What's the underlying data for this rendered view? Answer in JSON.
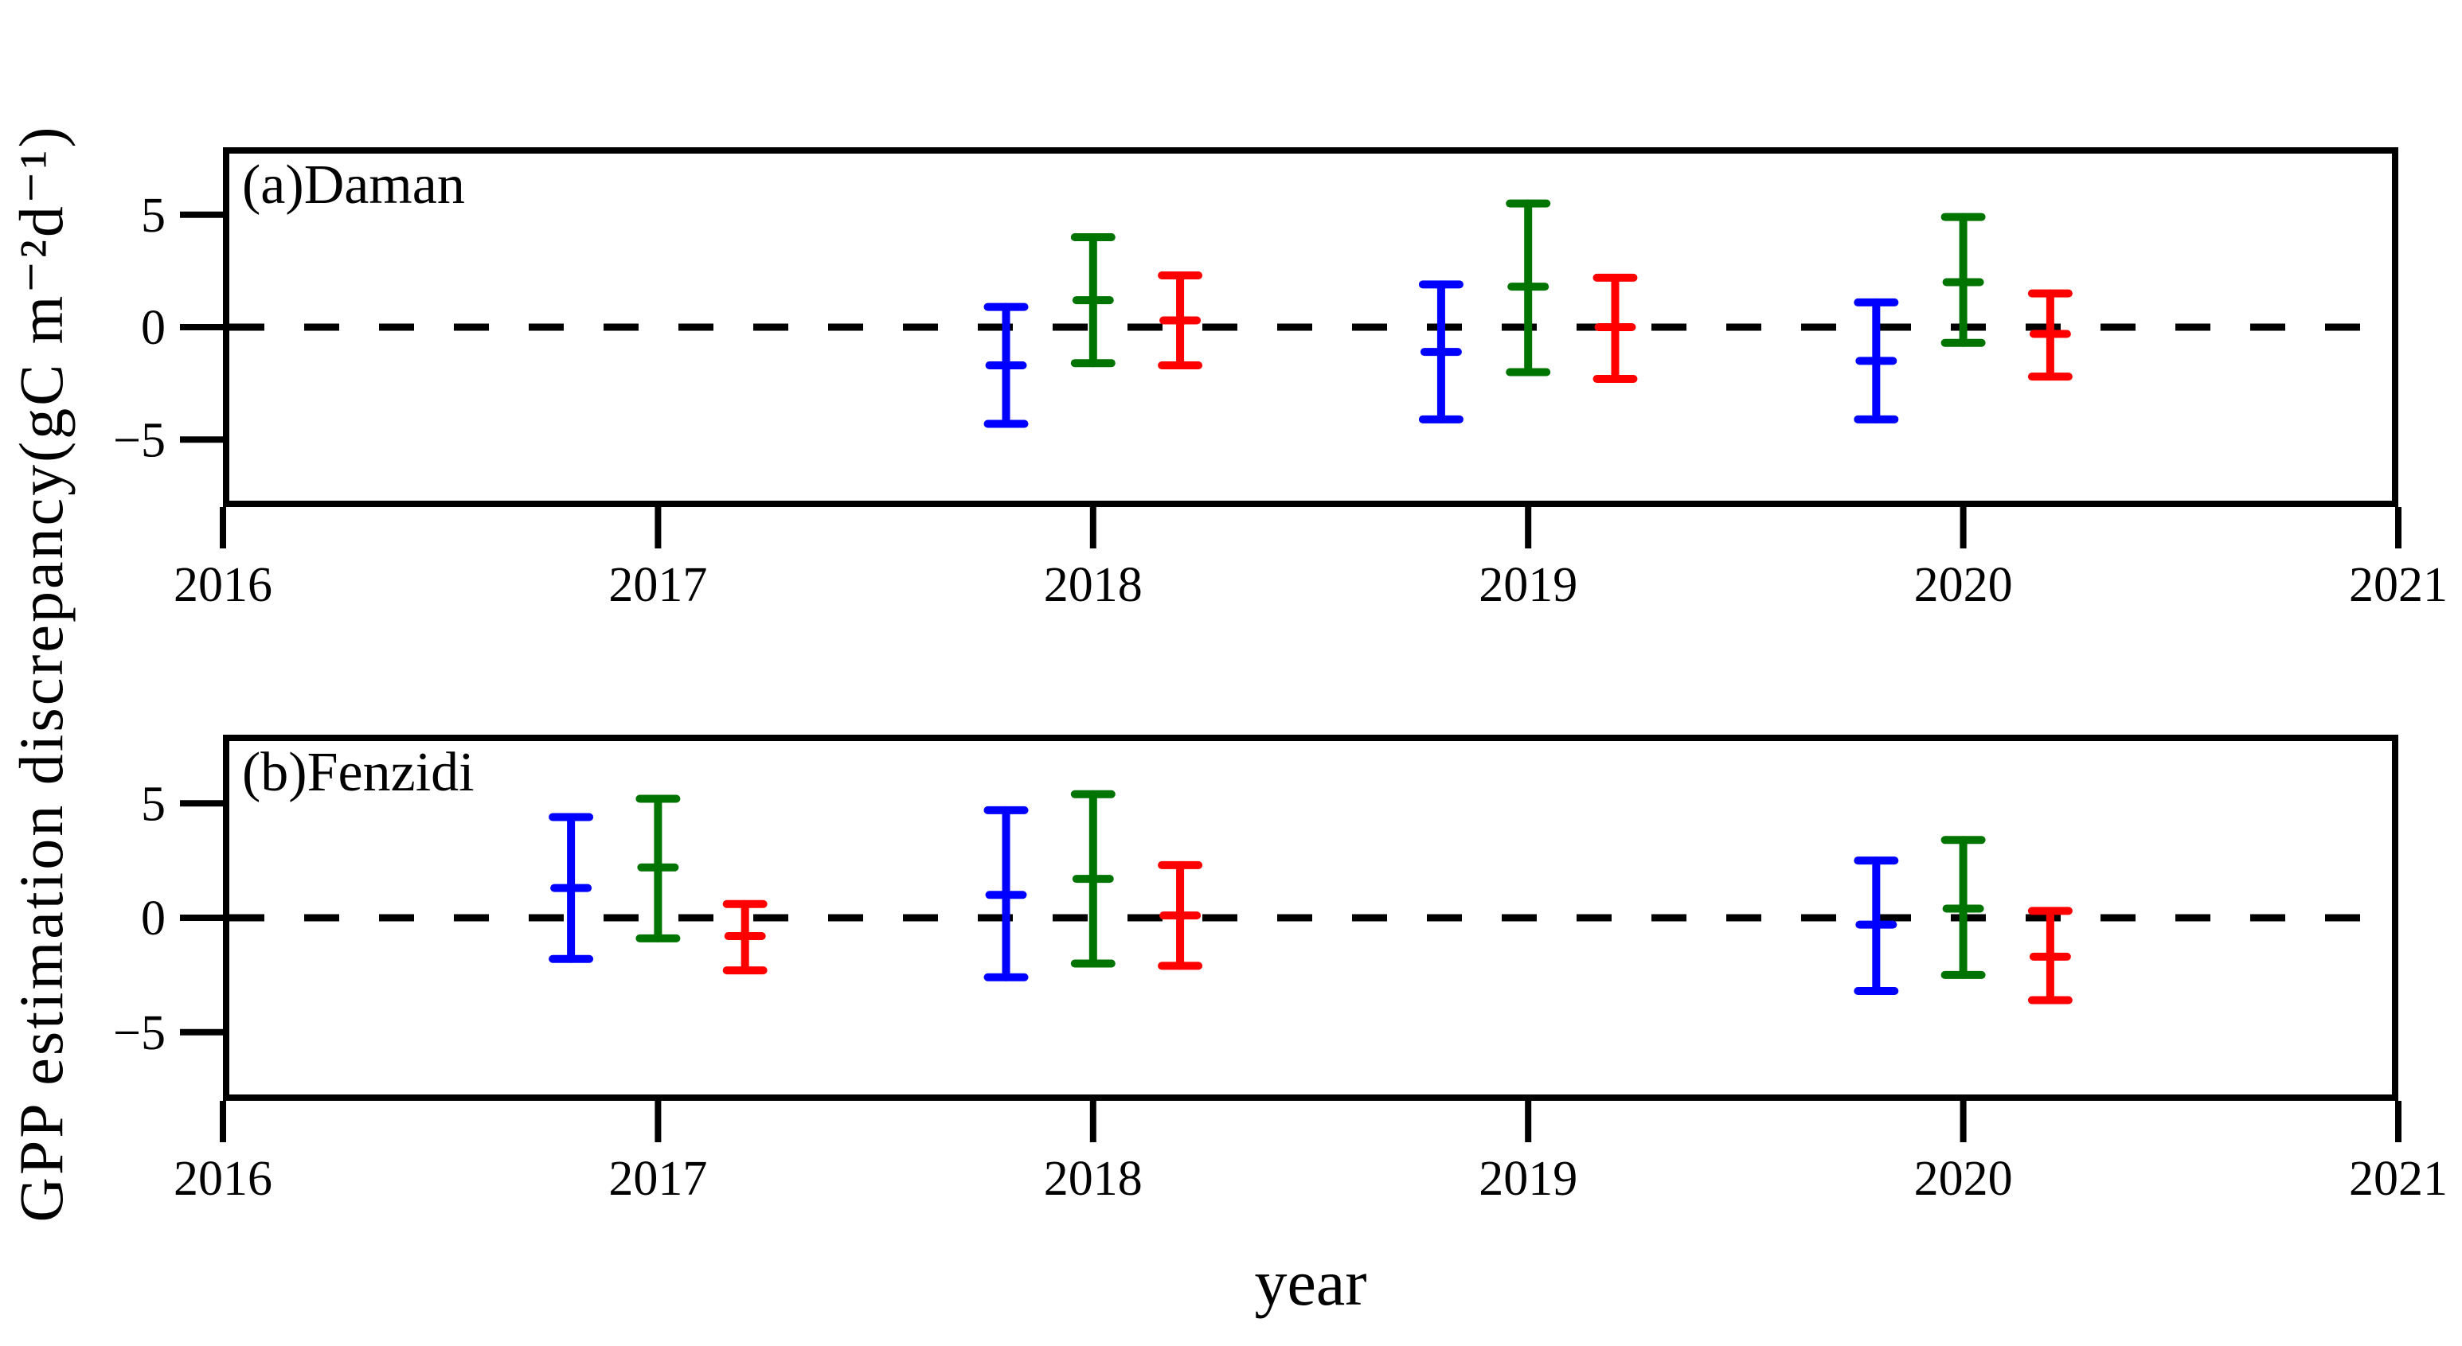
{
  "figure": {
    "background": "#ffffff",
    "frame_color": "#000000"
  },
  "axes": {
    "y_label": "GPP estimation discrepancy(gC m⁻²d⁻¹)",
    "x_label": "year"
  },
  "chart_data": [
    {
      "type": "errorbar",
      "panel_label": "(a)Daman",
      "xlim": [
        2016,
        2021
      ],
      "ylim": [
        -8,
        8
      ],
      "xticks": [
        2016,
        2017,
        2018,
        2019,
        2020,
        2021
      ],
      "xtick_labels": [
        "2016",
        "2017",
        "2018",
        "2019",
        "2020",
        "2021"
      ],
      "yticks": [
        5,
        0,
        -5
      ],
      "ytick_labels": [
        "5",
        "0",
        "−5"
      ],
      "zero_line": {
        "show": true,
        "color": "#000000",
        "style": "dashed"
      },
      "grid": false,
      "legend": "none",
      "series": [
        {
          "name": "series-blue",
          "color": "#0000ff",
          "x_offset": -0.2,
          "points": [
            {
              "x": 2017.8,
              "mean": -1.7,
              "upper": 0.9,
              "lower": -4.3
            },
            {
              "x": 2018.8,
              "mean": -1.1,
              "upper": 1.9,
              "lower": -4.1
            },
            {
              "x": 2019.8,
              "mean": -1.5,
              "upper": 1.1,
              "lower": -4.1
            }
          ]
        },
        {
          "name": "series-green",
          "color": "#007400",
          "x_offset": 0.0,
          "points": [
            {
              "x": 2018.0,
              "mean": 1.2,
              "upper": 4.0,
              "lower": -1.6
            },
            {
              "x": 2019.0,
              "mean": 1.8,
              "upper": 5.5,
              "lower": -2.0
            },
            {
              "x": 2020.0,
              "mean": 2.0,
              "upper": 4.9,
              "lower": -0.7
            }
          ]
        },
        {
          "name": "series-red",
          "color": "#ff0000",
          "x_offset": 0.2,
          "points": [
            {
              "x": 2018.2,
              "mean": 0.3,
              "upper": 2.3,
              "lower": -1.7
            },
            {
              "x": 2019.2,
              "mean": 0.0,
              "upper": 2.2,
              "lower": -2.3
            },
            {
              "x": 2020.2,
              "mean": -0.3,
              "upper": 1.5,
              "lower": -2.2
            }
          ]
        }
      ]
    },
    {
      "type": "errorbar",
      "panel_label": "(b)Fenzidi",
      "xlim": [
        2016,
        2021
      ],
      "ylim": [
        -8,
        8
      ],
      "xticks": [
        2016,
        2017,
        2018,
        2019,
        2020,
        2021
      ],
      "xtick_labels": [
        "2016",
        "2017",
        "2018",
        "2019",
        "2020",
        "2021"
      ],
      "yticks": [
        5,
        0,
        -5
      ],
      "ytick_labels": [
        "5",
        "0",
        "−5"
      ],
      "zero_line": {
        "show": true,
        "color": "#000000",
        "style": "dashed"
      },
      "grid": false,
      "legend": "none",
      "series": [
        {
          "name": "series-blue",
          "color": "#0000ff",
          "x_offset": -0.2,
          "points": [
            {
              "x": 2016.8,
              "mean": 1.3,
              "upper": 4.4,
              "lower": -1.8
            },
            {
              "x": 2017.8,
              "mean": 1.0,
              "upper": 4.7,
              "lower": -2.6
            },
            {
              "x": 2019.8,
              "mean": -0.3,
              "upper": 2.5,
              "lower": -3.2
            }
          ]
        },
        {
          "name": "series-green",
          "color": "#007400",
          "x_offset": 0.0,
          "points": [
            {
              "x": 2017.0,
              "mean": 2.2,
              "upper": 5.2,
              "lower": -0.9
            },
            {
              "x": 2018.0,
              "mean": 1.7,
              "upper": 5.4,
              "lower": -2.0
            },
            {
              "x": 2020.0,
              "mean": 0.4,
              "upper": 3.4,
              "lower": -2.5
            }
          ]
        },
        {
          "name": "series-red",
          "color": "#ff0000",
          "x_offset": 0.2,
          "points": [
            {
              "x": 2017.2,
              "mean": -0.8,
              "upper": 0.6,
              "lower": -2.3
            },
            {
              "x": 2018.2,
              "mean": 0.1,
              "upper": 2.3,
              "lower": -2.1
            },
            {
              "x": 2020.2,
              "mean": -1.7,
              "upper": 0.3,
              "lower": -3.6
            }
          ]
        }
      ]
    }
  ]
}
